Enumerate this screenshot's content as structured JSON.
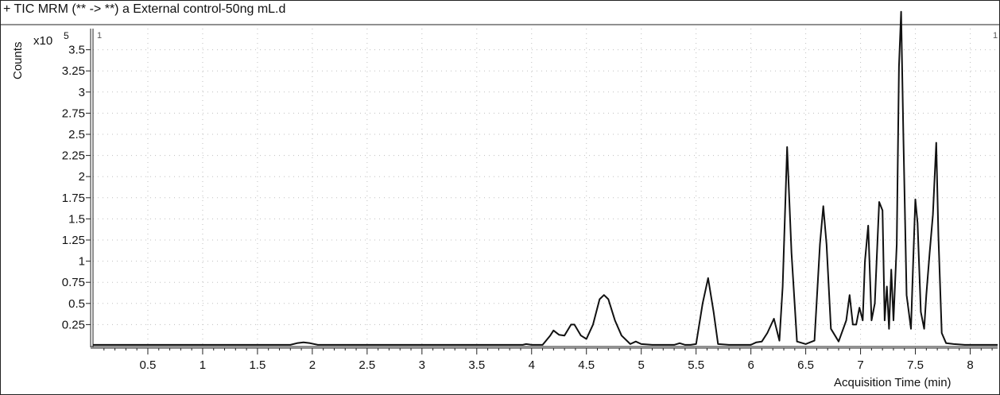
{
  "title": "+ TIC MRM (** -> **) a External control-50ng mL.d",
  "chart_data": {
    "type": "line",
    "title": "+ TIC MRM (** -> **) a External control-50ng mL.d",
    "xlabel": "Acquisition Time (min)",
    "ylabel": "Counts",
    "y_multiplier_label": "x10",
    "y_multiplier_exponent": "5",
    "xlim": [
      0,
      8.25
    ],
    "ylim": [
      0,
      3.75
    ],
    "x_ticks": [
      0.5,
      1,
      1.5,
      2,
      2.5,
      3,
      3.5,
      4,
      4.5,
      5,
      5.5,
      6,
      6.5,
      7,
      7.5,
      8
    ],
    "x_tick_labels": [
      "0.5",
      "1",
      "1.5",
      "2",
      "2.5",
      "3",
      "3.5",
      "4",
      "4.5",
      "5",
      "5.5",
      "6",
      "6.5",
      "7",
      "7.5",
      "8"
    ],
    "y_ticks": [
      0.25,
      0.5,
      0.75,
      1,
      1.25,
      1.5,
      1.75,
      2,
      2.25,
      2.5,
      2.75,
      3,
      3.25,
      3.5
    ],
    "y_tick_labels": [
      "0.25",
      "0.5",
      "0.75",
      "1",
      "1.25",
      "1.5",
      "1.75",
      "2",
      "2.25",
      "2.5",
      "2.75",
      "3",
      "3.25",
      "3.5"
    ],
    "grid": "dotted",
    "corner_marks": [
      "1",
      "1"
    ],
    "series": [
      {
        "x": [
          0.0,
          0.5,
          1.0,
          1.5,
          1.8,
          1.86,
          1.92,
          1.98,
          2.05,
          2.5,
          3.0,
          3.5,
          3.85,
          3.92,
          3.95,
          4.0,
          4.1,
          4.17,
          4.2,
          4.25,
          4.3,
          4.36,
          4.39,
          4.45,
          4.5,
          4.56,
          4.62,
          4.66,
          4.7,
          4.76,
          4.82,
          4.9,
          4.95,
          5.0,
          5.1,
          5.3,
          5.35,
          5.4,
          5.45,
          5.5,
          5.56,
          5.61,
          5.66,
          5.7,
          5.8,
          6.0,
          6.05,
          6.1,
          6.15,
          6.21,
          6.26,
          6.29,
          6.33,
          6.37,
          6.42,
          6.5,
          6.58,
          6.63,
          6.66,
          6.69,
          6.73,
          6.8,
          6.87,
          6.9,
          6.93,
          6.96,
          6.99,
          7.02,
          7.04,
          7.07,
          7.1,
          7.13,
          7.17,
          7.2,
          7.22,
          7.24,
          7.26,
          7.28,
          7.3,
          7.33,
          7.35,
          7.37,
          7.39,
          7.42,
          7.46,
          7.48,
          7.5,
          7.52,
          7.55,
          7.58,
          7.6,
          7.63,
          7.66,
          7.69,
          7.71,
          7.74,
          7.78,
          7.85,
          7.95,
          8.1,
          8.25
        ],
        "y": [
          0.01,
          0.01,
          0.01,
          0.01,
          0.01,
          0.03,
          0.04,
          0.03,
          0.01,
          0.01,
          0.01,
          0.01,
          0.01,
          0.01,
          0.02,
          0.01,
          0.01,
          0.12,
          0.18,
          0.13,
          0.12,
          0.25,
          0.25,
          0.12,
          0.08,
          0.25,
          0.55,
          0.6,
          0.55,
          0.3,
          0.12,
          0.02,
          0.05,
          0.02,
          0.01,
          0.01,
          0.03,
          0.01,
          0.01,
          0.02,
          0.5,
          0.8,
          0.4,
          0.02,
          0.01,
          0.01,
          0.04,
          0.05,
          0.15,
          0.32,
          0.06,
          0.7,
          2.35,
          1.1,
          0.05,
          0.02,
          0.06,
          1.2,
          1.65,
          1.2,
          0.2,
          0.05,
          0.3,
          0.6,
          0.25,
          0.25,
          0.45,
          0.3,
          1.0,
          1.42,
          0.3,
          0.5,
          1.7,
          1.6,
          0.3,
          0.7,
          0.2,
          0.9,
          0.3,
          1.2,
          3.3,
          3.95,
          2.5,
          0.6,
          0.2,
          1.0,
          1.73,
          1.45,
          0.4,
          0.2,
          0.6,
          1.1,
          1.55,
          2.4,
          1.3,
          0.15,
          0.03,
          0.02,
          0.01,
          0.01,
          0.01
        ]
      }
    ]
  }
}
